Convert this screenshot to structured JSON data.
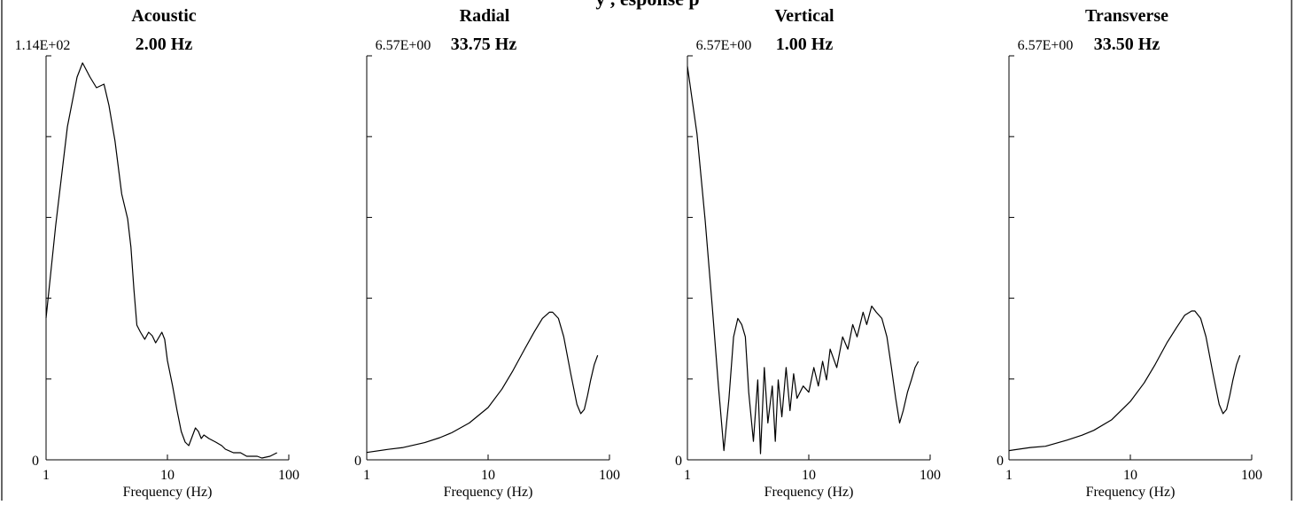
{
  "figure_title_partial": "y , esponse p",
  "chart_data": [
    {
      "type": "line",
      "title": "Acoustic",
      "peak_label": "2.00 Hz",
      "ymax_label": "1.14E+02",
      "ymin_label": "0",
      "xlabel": "Frequency (Hz)",
      "x_scale": "log",
      "xlim": [
        1,
        100
      ],
      "xticks": [
        "1",
        "10",
        "100"
      ],
      "ylim": [
        0,
        114
      ],
      "grid": false,
      "series": [
        {
          "x": [
            1,
            1.2,
            1.5,
            1.8,
            2,
            2.3,
            2.6,
            3,
            3.3,
            3.7,
            4.2,
            4.7,
            5,
            5.3,
            5.6,
            6,
            6.5,
            7,
            7.5,
            8,
            9,
            9.5,
            10,
            11,
            12,
            13,
            14,
            15,
            17,
            18,
            19,
            20,
            22,
            25,
            28,
            30,
            35,
            40,
            45,
            50,
            55,
            60,
            70,
            80
          ],
          "y": [
            40,
            66,
            94,
            108,
            112,
            108,
            105,
            106,
            100,
            90,
            75,
            68,
            60,
            48,
            38,
            36,
            34,
            36,
            35,
            33,
            36,
            34,
            28,
            21,
            14,
            8,
            5,
            4,
            9,
            8,
            6,
            7,
            6,
            5,
            4,
            3,
            2,
            2,
            1,
            1,
            1,
            0.5,
            1,
            2
          ]
        }
      ]
    },
    {
      "type": "line",
      "title": "Radial",
      "peak_label": "33.75 Hz",
      "ymax_label": "6.57E+00",
      "ymin_label": "0",
      "xlabel": "Frequency (Hz)",
      "x_scale": "log",
      "xlim": [
        1,
        100
      ],
      "xticks": [
        "1",
        "10",
        "100"
      ],
      "ylim": [
        0,
        6.57
      ],
      "grid": false,
      "series": [
        {
          "x": [
            1,
            1.5,
            2,
            3,
            4,
            5,
            7,
            10,
            13,
            16,
            20,
            24,
            28,
            32,
            34,
            38,
            42,
            48,
            54,
            58,
            62,
            66,
            70,
            75,
            80
          ],
          "y": [
            0.12,
            0.17,
            0.2,
            0.28,
            0.36,
            0.44,
            0.6,
            0.85,
            1.15,
            1.45,
            1.8,
            2.08,
            2.3,
            2.4,
            2.4,
            2.3,
            2.0,
            1.4,
            0.9,
            0.75,
            0.82,
            1.05,
            1.3,
            1.55,
            1.7
          ]
        }
      ]
    },
    {
      "type": "line",
      "title": "Vertical",
      "peak_label": "1.00 Hz",
      "ymax_label": "6.57E+00",
      "ymin_label": "0",
      "xlabel": "Frequency (Hz)",
      "x_scale": "log",
      "xlim": [
        1,
        100
      ],
      "xticks": [
        "1",
        "10",
        "100"
      ],
      "ylim": [
        0,
        6.57
      ],
      "grid": false,
      "series": [
        {
          "x": [
            1,
            1.2,
            1.4,
            1.6,
            1.8,
            2,
            2.2,
            2.4,
            2.6,
            2.8,
            3,
            3.2,
            3.5,
            3.8,
            4,
            4.3,
            4.6,
            5,
            5.3,
            5.6,
            6,
            6.5,
            7,
            7.5,
            8,
            9,
            10,
            11,
            12,
            13,
            14,
            15,
            17,
            19,
            21,
            23,
            25,
            28,
            30,
            33,
            36,
            40,
            44,
            48,
            52,
            56,
            60,
            65,
            70,
            75,
            80
          ],
          "y": [
            6.4,
            5.3,
            3.9,
            2.5,
            1.2,
            0.15,
            1.0,
            2.0,
            2.3,
            2.2,
            2.0,
            1.1,
            0.3,
            1.3,
            0.1,
            1.5,
            0.6,
            1.2,
            0.3,
            1.3,
            0.7,
            1.5,
            0.8,
            1.4,
            1.0,
            1.2,
            1.1,
            1.5,
            1.2,
            1.6,
            1.3,
            1.8,
            1.5,
            2.0,
            1.8,
            2.2,
            2.0,
            2.4,
            2.2,
            2.5,
            2.4,
            2.3,
            2.0,
            1.5,
            1.0,
            0.6,
            0.8,
            1.1,
            1.3,
            1.5,
            1.6
          ]
        }
      ]
    },
    {
      "type": "line",
      "title": "Transverse",
      "peak_label": "33.50 Hz",
      "ymax_label": "6.57E+00",
      "ymin_label": "0",
      "xlabel": "Frequency (Hz)",
      "x_scale": "log",
      "xlim": [
        1,
        100
      ],
      "xticks": [
        "1",
        "10",
        "100"
      ],
      "ylim": [
        0,
        6.57
      ],
      "grid": false,
      "series": [
        {
          "x": [
            1,
            1.5,
            2,
            3,
            4,
            5,
            7,
            10,
            13,
            16,
            20,
            24,
            28,
            32,
            34,
            38,
            42,
            48,
            54,
            58,
            62,
            66,
            70,
            75,
            80
          ],
          "y": [
            0.15,
            0.2,
            0.22,
            0.32,
            0.4,
            0.48,
            0.65,
            0.95,
            1.25,
            1.55,
            1.9,
            2.15,
            2.35,
            2.42,
            2.42,
            2.3,
            2.0,
            1.4,
            0.9,
            0.75,
            0.82,
            1.05,
            1.3,
            1.55,
            1.7
          ]
        }
      ]
    }
  ]
}
